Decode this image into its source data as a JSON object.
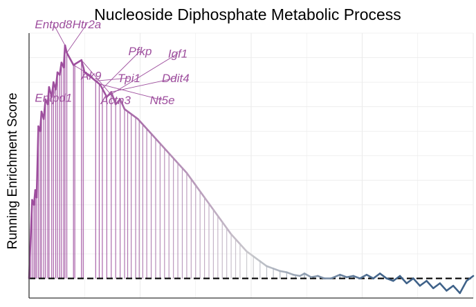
{
  "chart_data": {
    "type": "line",
    "title": "Nucleoside Diphosphate Metabolic Process",
    "xlabel": "",
    "ylabel": "Running Enrichment Score",
    "xlim": [
      0,
      1000
    ],
    "ylim": [
      -0.08,
      1.0
    ],
    "grid": true,
    "baseline": 0,
    "colors": {
      "high": "#9e4f9e",
      "mid": "#c8c8cc",
      "low": "#3f6289",
      "grid": "#ebebeb",
      "baseline": "#000000"
    },
    "series": [
      {
        "values": [
          [
            0,
            0
          ],
          [
            7,
            0.32
          ],
          [
            11,
            0.3
          ],
          [
            14,
            0.36
          ],
          [
            17,
            0.33
          ],
          [
            21,
            0.62
          ],
          [
            25,
            0.6
          ],
          [
            28,
            0.68
          ],
          [
            33,
            0.65
          ],
          [
            37,
            0.73
          ],
          [
            42,
            0.71
          ],
          [
            45,
            0.78
          ],
          [
            51,
            0.74
          ],
          [
            55,
            0.8
          ],
          [
            60,
            0.77
          ],
          [
            64,
            0.84
          ],
          [
            69,
            0.83
          ],
          [
            73,
            0.88
          ],
          [
            78,
            0.86
          ],
          [
            81,
            0.95
          ],
          [
            85,
            0.92
          ],
          [
            100,
            0.87
          ],
          [
            118,
            0.89
          ],
          [
            125,
            0.84
          ],
          [
            140,
            0.82
          ],
          [
            160,
            0.79
          ],
          [
            175,
            0.74
          ],
          [
            185,
            0.76
          ],
          [
            195,
            0.71
          ],
          [
            205,
            0.73
          ],
          [
            215,
            0.69
          ],
          [
            230,
            0.67
          ],
          [
            245,
            0.65
          ],
          [
            260,
            0.62
          ],
          [
            275,
            0.59
          ],
          [
            295,
            0.55
          ],
          [
            315,
            0.51
          ],
          [
            335,
            0.47
          ],
          [
            355,
            0.43
          ],
          [
            375,
            0.38
          ],
          [
            395,
            0.33
          ],
          [
            415,
            0.28
          ],
          [
            435,
            0.23
          ],
          [
            455,
            0.18
          ],
          [
            475,
            0.14
          ],
          [
            490,
            0.11
          ],
          [
            505,
            0.09
          ],
          [
            520,
            0.07
          ],
          [
            535,
            0.05
          ],
          [
            550,
            0.04
          ],
          [
            565,
            0.03
          ],
          [
            580,
            0.025
          ],
          [
            595,
            0.015
          ],
          [
            610,
            0.01
          ],
          [
            620,
            0.02
          ],
          [
            635,
            0.005
          ],
          [
            650,
            0.01
          ],
          [
            665,
            0.0
          ],
          [
            680,
            0.0
          ],
          [
            700,
            0.015
          ],
          [
            715,
            0.005
          ],
          [
            730,
            0.01
          ],
          [
            745,
            0.0
          ],
          [
            760,
            0.015
          ],
          [
            775,
            0.0
          ],
          [
            790,
            0.02
          ],
          [
            805,
            0.0
          ],
          [
            820,
            -0.01
          ],
          [
            835,
            0.01
          ],
          [
            850,
            -0.02
          ],
          [
            865,
            0.0
          ],
          [
            880,
            -0.03
          ],
          [
            895,
            -0.01
          ],
          [
            910,
            -0.04
          ],
          [
            925,
            -0.02
          ],
          [
            940,
            -0.05
          ],
          [
            955,
            -0.03
          ],
          [
            970,
            -0.06
          ],
          [
            985,
            -0.01
          ],
          [
            1000,
            0.01
          ]
        ]
      }
    ],
    "gene_hits": [
      3,
      7,
      11,
      14,
      17,
      21,
      25,
      28,
      33,
      37,
      42,
      45,
      51,
      55,
      60,
      64,
      69,
      73,
      78,
      81,
      85,
      100,
      103,
      118,
      122,
      150,
      158,
      165,
      175,
      185,
      195,
      205,
      215,
      222,
      230,
      240,
      248,
      256,
      265,
      275,
      285,
      295,
      305,
      315,
      325,
      335,
      345,
      355,
      365,
      375,
      385,
      395,
      405,
      415,
      425,
      435,
      445,
      455,
      465,
      475,
      490,
      505,
      520,
      535,
      550,
      565,
      580,
      600,
      620,
      640,
      665,
      700,
      730
    ],
    "annotations": [
      {
        "gene": "Entpd8",
        "hit_x": 81,
        "label_x": 55,
        "label_y": 1.02
      },
      {
        "gene": "Htr2a",
        "hit_x": 85,
        "label_x": 130,
        "label_y": 1.02
      },
      {
        "gene": "Entpd1",
        "hit_x": 64,
        "label_x": 55,
        "label_y": 0.72
      },
      {
        "gene": "Ak9",
        "hit_x": 100,
        "label_x": 140,
        "label_y": 0.81
      },
      {
        "gene": "Actn3",
        "hit_x": 118,
        "label_x": 195,
        "label_y": 0.71
      },
      {
        "gene": "Tpi1",
        "hit_x": 150,
        "label_x": 225,
        "label_y": 0.8
      },
      {
        "gene": "Nt5e",
        "hit_x": 158,
        "label_x": 300,
        "label_y": 0.71
      },
      {
        "gene": "Pfkp",
        "hit_x": 165,
        "label_x": 250,
        "label_y": 0.91
      },
      {
        "gene": "Igf1",
        "hit_x": 175,
        "label_x": 335,
        "label_y": 0.9
      },
      {
        "gene": "Ddit4",
        "hit_x": 185,
        "label_x": 330,
        "label_y": 0.8
      }
    ]
  }
}
